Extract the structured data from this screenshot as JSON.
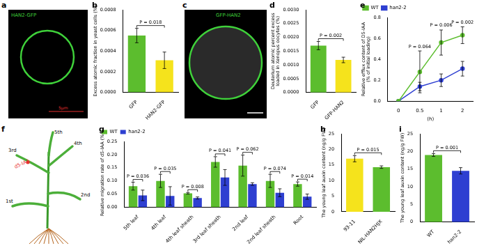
{
  "image_panels": [
    {
      "panel": "a",
      "type": "image",
      "label": "HAN2-GFP",
      "scale_bar": "5μm"
    },
    {
      "panel": "c",
      "type": "image",
      "label": "GFP-HAN2"
    },
    {
      "panel": "f",
      "type": "diagram",
      "labels": [
        "5th",
        "4th",
        "3rd",
        "2nd",
        "1st"
      ],
      "annotation": "d5-IAA"
    }
  ],
  "chart_data": [
    {
      "panel": "b",
      "type": "bar",
      "categories": [
        "GFP",
        "HAN2-GFP"
      ],
      "values": [
        0.00055,
        0.00031
      ],
      "errors": [
        7e-05,
        8e-05
      ],
      "colors": [
        "#5cbd2e",
        "#f5e31c"
      ],
      "y_label": "Excess atomic fraction in yeast cells (%)",
      "ylim": [
        0,
        0.0008
      ],
      "yticks": [
        {
          "value": 0,
          "label": "0.0000"
        },
        {
          "value": 0.0002,
          "label": "0.0002"
        },
        {
          "value": 0.0004,
          "label": "0.0004"
        },
        {
          "value": 0.0006,
          "label": "0.0006"
        },
        {
          "value": 0.0008,
          "label": "0.0008"
        }
      ],
      "annotations": [
        {
          "text": "P = 0.018"
        }
      ],
      "grid": false
    },
    {
      "panel": "d",
      "type": "bar",
      "categories": [
        "GFP",
        "GFP-HAN2"
      ],
      "values": [
        0.0017,
        0.00118
      ],
      "errors": [
        0.00015,
        0.0001
      ],
      "colors": [
        "#5cbd2e",
        "#f5e31c"
      ],
      "y_label": [
        "Deuterium atomic percent excess",
        "loaded in Xenopus oocytes (%)"
      ],
      "ylim": [
        0,
        0.003
      ],
      "yticks": [
        {
          "value": 0,
          "label": "0.0000"
        },
        {
          "value": 0.0005,
          "label": "0.0005"
        },
        {
          "value": 0.001,
          "label": "0.0010"
        },
        {
          "value": 0.0015,
          "label": "0.0015"
        },
        {
          "value": 0.002,
          "label": "0.0020"
        },
        {
          "value": 0.0025,
          "label": "0.0025"
        },
        {
          "value": 0.003,
          "label": "0.0030"
        }
      ],
      "annotations": [
        {
          "text": "P = 0.002"
        }
      ],
      "grid": false
    },
    {
      "panel": "e",
      "type": "line",
      "categories": [
        "0",
        "0.5",
        "1",
        "2"
      ],
      "x_label": "(h)",
      "series": [
        {
          "name": "WT",
          "color": "#5cbd2e",
          "values": [
            0,
            0.28,
            0.56,
            0.63
          ],
          "errors": [
            0,
            0.2,
            0.12,
            0.08
          ]
        },
        {
          "name": "han2-2",
          "color": "#2e3fd1",
          "values": [
            0,
            0.14,
            0.2,
            0.31
          ],
          "errors": [
            0,
            0.04,
            0.06,
            0.07
          ]
        }
      ],
      "y_label": [
        "Relative efflux content of D5-IAA",
        "(% of initial loading)"
      ],
      "ylim": [
        0,
        0.8
      ],
      "yticks": [
        {
          "value": 0,
          "label": "0.0"
        },
        {
          "value": 0.2,
          "label": "0.2"
        },
        {
          "value": 0.4,
          "label": "0.4"
        },
        {
          "value": 0.6,
          "label": "0.6"
        },
        {
          "value": 0.8,
          "label": "0.8"
        }
      ],
      "annotations": [
        {
          "x": "0.5",
          "text": "P = 0.064"
        },
        {
          "x": "1",
          "text": "P = 0.006"
        },
        {
          "x": "2",
          "text": "P = 0.002"
        }
      ],
      "legend": "top-left",
      "marker": "circle",
      "grid": false
    },
    {
      "panel": "g",
      "type": "bar",
      "categories": [
        "5th leaf",
        "4th leaf",
        "4th leaf sheath",
        "3rd leaf sheath",
        "2nd leaf",
        "2nd leaf sheath",
        "Root"
      ],
      "series": [
        {
          "name": "WT",
          "color": "#5cbd2e",
          "values": [
            0.08,
            0.1,
            0.053,
            0.172,
            0.158,
            0.1,
            0.088
          ],
          "errors": [
            0.015,
            0.025,
            0.003,
            0.02,
            0.04,
            0.025,
            0.008
          ]
        },
        {
          "name": "han2-2",
          "color": "#2e3fd1",
          "values": [
            0.045,
            0.043,
            0.035,
            0.113,
            0.088,
            0.055,
            0.04
          ],
          "errors": [
            0.02,
            0.035,
            0.004,
            0.03,
            0.005,
            0.015,
            0.01
          ]
        }
      ],
      "y_label": "Relative migration rate of d5-IAA (%)",
      "ylim": [
        0,
        0.25
      ],
      "yticks": [
        {
          "value": 0,
          "label": "0.00"
        },
        {
          "value": 0.05,
          "label": "0.05"
        },
        {
          "value": 0.1,
          "label": "0.10"
        },
        {
          "value": 0.15,
          "label": "0.15"
        },
        {
          "value": 0.2,
          "label": "0.20"
        },
        {
          "value": 0.25,
          "label": "0.25"
        }
      ],
      "annotations": [
        {
          "x": "5th leaf",
          "text": "P = 0.036"
        },
        {
          "x": "4th leaf",
          "text": "P = 0.035"
        },
        {
          "x": "4th leaf sheath",
          "text": "P = 0.008"
        },
        {
          "x": "3rd leaf sheath",
          "text": "P = 0.041"
        },
        {
          "x": "2nd leaf",
          "text": "P = 0.062"
        },
        {
          "x": "2nd leaf sheath",
          "text": "P = 0.074"
        },
        {
          "x": "Root",
          "text": "P = 0.014"
        }
      ],
      "legend": "top-left",
      "grid": false
    },
    {
      "panel": "h",
      "type": "bar",
      "categories": [
        "93-11",
        "NIL-HAN2HJX"
      ],
      "values": [
        17,
        14.3
      ],
      "errors": [
        1.0,
        0.4
      ],
      "colors": [
        "#f5e31c",
        "#5cbd2e"
      ],
      "y_label": "The young leaf auxin content (ng/g FW)",
      "ylim": [
        0,
        25
      ],
      "yticks": [
        0,
        5,
        10,
        15,
        20,
        25
      ],
      "annotations": [
        {
          "text": "P = 0.015"
        }
      ],
      "grid": false
    },
    {
      "panel": "i",
      "type": "bar",
      "categories": [
        "WT",
        "han2-2"
      ],
      "values": [
        19.0,
        14.5
      ],
      "errors": [
        0.4,
        0.9
      ],
      "colors": [
        "#5cbd2e",
        "#2e3fd1"
      ],
      "y_label": "The young leaf auxin content (ng/g FW)",
      "ylim": [
        0,
        25
      ],
      "yticks": [
        0,
        5,
        10,
        15,
        20,
        25
      ],
      "annotations": [
        {
          "text": "P = 0.001"
        }
      ],
      "grid": false
    }
  ]
}
